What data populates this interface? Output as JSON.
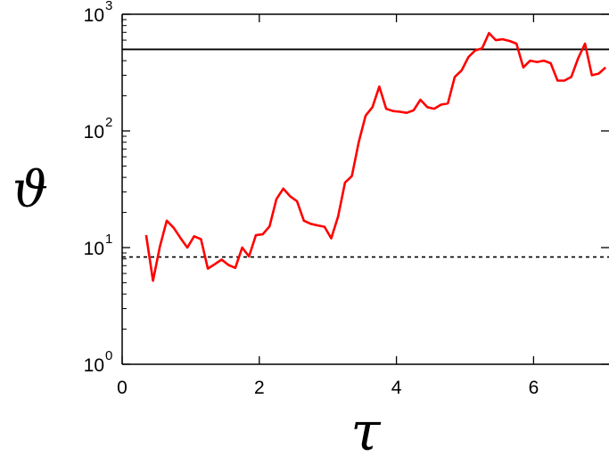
{
  "chart_data": {
    "type": "line",
    "xlabel": "τ",
    "ylabel": "ϑ",
    "xlim": [
      0,
      7.1
    ],
    "ylim": [
      1,
      1000
    ],
    "yscale": "log",
    "grid": false,
    "x_ticks": [
      {
        "value": 0,
        "label": "0"
      },
      {
        "value": 2,
        "label": "2"
      },
      {
        "value": 4,
        "label": "4"
      },
      {
        "value": 6,
        "label": "6"
      }
    ],
    "y_ticks": [
      {
        "value": 1,
        "base": "10",
        "exp": "0"
      },
      {
        "value": 10,
        "base": "10",
        "exp": "1"
      },
      {
        "value": 100,
        "base": "10",
        "exp": "2"
      },
      {
        "value": 1000,
        "base": "10",
        "exp": "3"
      }
    ],
    "reference_lines": [
      {
        "y": 500,
        "style": "solid",
        "color": "#000000"
      },
      {
        "y": 8.3,
        "style": "dashed",
        "color": "#000000"
      }
    ],
    "series": [
      {
        "color": "#ff0000",
        "x": [
          0.35,
          0.45,
          0.55,
          0.65,
          0.75,
          0.85,
          0.95,
          1.05,
          1.15,
          1.25,
          1.35,
          1.45,
          1.55,
          1.65,
          1.75,
          1.85,
          1.95,
          2.05,
          2.15,
          2.25,
          2.35,
          2.45,
          2.55,
          2.65,
          2.75,
          2.85,
          2.95,
          3.05,
          3.15,
          3.25,
          3.35,
          3.45,
          3.55,
          3.65,
          3.75,
          3.85,
          3.95,
          4.05,
          4.15,
          4.25,
          4.35,
          4.45,
          4.55,
          4.65,
          4.75,
          4.85,
          4.95,
          5.05,
          5.15,
          5.25,
          5.35,
          5.45,
          5.55,
          5.65,
          5.75,
          5.85,
          5.95,
          6.05,
          6.15,
          6.25,
          6.35,
          6.45,
          6.55,
          6.65,
          6.75,
          6.85,
          6.95,
          7.05
        ],
        "y": [
          12.8,
          5.2,
          10.2,
          17,
          14.8,
          12.1,
          10,
          12.5,
          11.8,
          6.6,
          7.2,
          7.9,
          7.1,
          6.7,
          10,
          8.4,
          12.8,
          13,
          15.2,
          26,
          32,
          27.5,
          25,
          17,
          16,
          15.5,
          15.1,
          12,
          18.5,
          36,
          41,
          80,
          135,
          160,
          240,
          155,
          148,
          146,
          143,
          150,
          185,
          160,
          155,
          168,
          172,
          290,
          330,
          430,
          490,
          510,
          690,
          600,
          610,
          590,
          560,
          350,
          400,
          390,
          400,
          380,
          270,
          270,
          290,
          420,
          560,
          300,
          310,
          350
        ]
      }
    ]
  }
}
